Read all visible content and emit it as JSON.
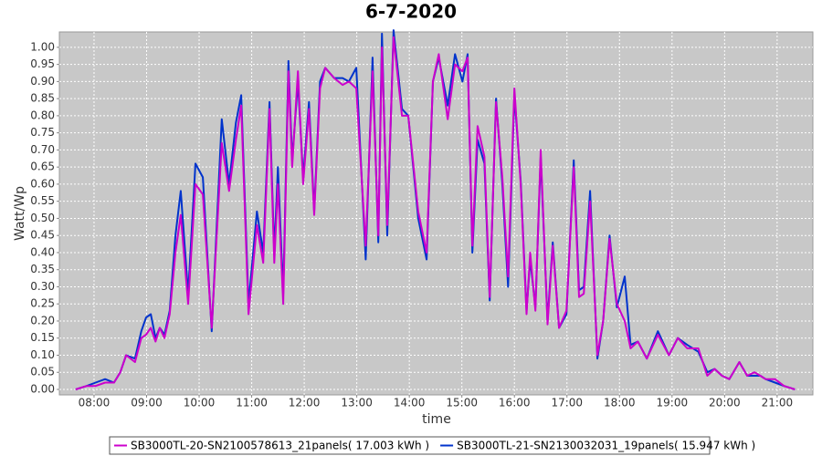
{
  "chart_data": {
    "type": "line",
    "title": "6-7-2020",
    "x_label": "time",
    "y_label": "Watt/Wp",
    "xlim": [
      7.34,
      21.68
    ],
    "ylim": [
      -0.016,
      1.045
    ],
    "grid": true,
    "legend": "bottom",
    "xticks": [
      {
        "value": 8,
        "label": "08:00"
      },
      {
        "value": 9,
        "label": "09:00"
      },
      {
        "value": 10,
        "label": "10:00"
      },
      {
        "value": 11,
        "label": "11:00"
      },
      {
        "value": 12,
        "label": "12:00"
      },
      {
        "value": 13,
        "label": "13:00"
      },
      {
        "value": 14,
        "label": "14:00"
      },
      {
        "value": 15,
        "label": "15:00"
      },
      {
        "value": 16,
        "label": "16:00"
      },
      {
        "value": 17,
        "label": "17:00"
      },
      {
        "value": 18,
        "label": "18:00"
      },
      {
        "value": 19,
        "label": "19:00"
      },
      {
        "value": 20,
        "label": "20:00"
      },
      {
        "value": 21,
        "label": "21:00"
      }
    ],
    "yticks": [
      {
        "value": 0,
        "label": "0.00"
      },
      0.05,
      {
        "value": 0.1,
        "label": "0.10"
      },
      0.15,
      {
        "value": 0.2,
        "label": "0.20"
      },
      0.25,
      {
        "value": 0.3,
        "label": "0.30"
      },
      0.35,
      {
        "value": 0.4,
        "label": "0.40"
      },
      0.45,
      {
        "value": 0.5,
        "label": "0.50"
      },
      0.55,
      {
        "value": 0.6,
        "label": "0.60"
      },
      0.65,
      {
        "value": 0.7,
        "label": "0.70"
      },
      0.75,
      {
        "value": 0.8,
        "label": "0.80"
      },
      0.85,
      {
        "value": 0.9,
        "label": "0.90"
      },
      0.95,
      {
        "value": 1,
        "label": "1.00"
      }
    ],
    "x": [
      7.65,
      7.86,
      8.03,
      8.21,
      8.38,
      8.5,
      8.61,
      8.78,
      8.9,
      8.99,
      9.08,
      9.17,
      9.25,
      9.34,
      9.44,
      9.55,
      9.65,
      9.79,
      9.93,
      10.07,
      10.24,
      10.43,
      10.57,
      10.7,
      10.8,
      10.94,
      11.1,
      11.22,
      11.34,
      11.43,
      11.5,
      11.6,
      11.7,
      11.77,
      11.88,
      11.98,
      12.09,
      12.19,
      12.3,
      12.4,
      12.57,
      12.73,
      12.85,
      12.99,
      13.17,
      13.3,
      13.41,
      13.48,
      13.58,
      13.7,
      13.86,
      13.98,
      14.17,
      14.33,
      14.45,
      14.56,
      14.73,
      14.87,
      15.01,
      15.11,
      15.2,
      15.3,
      15.43,
      15.53,
      15.65,
      15.77,
      15.88,
      16.0,
      16.12,
      16.23,
      16.3,
      16.4,
      16.5,
      16.63,
      16.73,
      16.85,
      16.99,
      17.13,
      17.23,
      17.32,
      17.44,
      17.58,
      17.69,
      17.81,
      17.95,
      18.1,
      18.21,
      18.35,
      18.52,
      18.73,
      18.94,
      19.11,
      19.29,
      19.5,
      19.67,
      19.81,
      19.95,
      20.09,
      20.28,
      20.43,
      20.57,
      20.68,
      20.78,
      20.96,
      21.13,
      21.34
    ],
    "series": [
      {
        "name": "SB3000TL-20-SN2100578613_21panels( 17.003 kWh )",
        "color": "#cc00cc",
        "values": [
          0.0,
          0.01,
          0.01,
          0.02,
          0.02,
          0.05,
          0.1,
          0.08,
          0.15,
          0.16,
          0.18,
          0.14,
          0.18,
          0.15,
          0.22,
          0.4,
          0.51,
          0.25,
          0.6,
          0.57,
          0.18,
          0.72,
          0.58,
          0.73,
          0.83,
          0.22,
          0.48,
          0.37,
          0.82,
          0.37,
          0.6,
          0.25,
          0.93,
          0.65,
          0.93,
          0.6,
          0.82,
          0.51,
          0.88,
          0.94,
          0.91,
          0.89,
          0.9,
          0.88,
          0.42,
          0.93,
          0.45,
          1.0,
          0.48,
          1.03,
          0.8,
          0.8,
          0.52,
          0.4,
          0.9,
          0.98,
          0.79,
          0.95,
          0.93,
          0.97,
          0.42,
          0.77,
          0.68,
          0.27,
          0.84,
          0.62,
          0.33,
          0.88,
          0.6,
          0.22,
          0.4,
          0.23,
          0.7,
          0.19,
          0.42,
          0.18,
          0.23,
          0.65,
          0.27,
          0.28,
          0.55,
          0.1,
          0.2,
          0.44,
          0.25,
          0.2,
          0.12,
          0.14,
          0.09,
          0.16,
          0.1,
          0.15,
          0.12,
          0.12,
          0.04,
          0.06,
          0.04,
          0.03,
          0.08,
          0.04,
          0.05,
          0.04,
          0.03,
          0.03,
          0.01,
          0.0
        ]
      },
      {
        "name": "SB3000TL-21-SN2130032031_19panels( 15.947 kWh )",
        "color": "#0033cc",
        "values": [
          0.0,
          0.01,
          0.02,
          0.03,
          0.02,
          0.05,
          0.1,
          0.09,
          0.17,
          0.21,
          0.22,
          0.15,
          0.18,
          0.16,
          0.23,
          0.45,
          0.58,
          0.28,
          0.66,
          0.62,
          0.17,
          0.79,
          0.6,
          0.78,
          0.86,
          0.25,
          0.52,
          0.4,
          0.84,
          0.4,
          0.65,
          0.28,
          0.96,
          0.67,
          0.9,
          0.62,
          0.84,
          0.52,
          0.9,
          0.94,
          0.91,
          0.91,
          0.9,
          0.94,
          0.38,
          0.97,
          0.43,
          1.04,
          0.45,
          1.05,
          0.82,
          0.8,
          0.5,
          0.38,
          0.9,
          0.97,
          0.83,
          0.98,
          0.9,
          0.98,
          0.4,
          0.73,
          0.66,
          0.26,
          0.85,
          0.6,
          0.3,
          0.86,
          0.61,
          0.23,
          0.38,
          0.24,
          0.68,
          0.2,
          0.43,
          0.18,
          0.22,
          0.67,
          0.29,
          0.3,
          0.58,
          0.09,
          0.2,
          0.45,
          0.24,
          0.33,
          0.13,
          0.14,
          0.09,
          0.17,
          0.1,
          0.15,
          0.13,
          0.11,
          0.05,
          0.06,
          0.04,
          0.03,
          0.08,
          0.04,
          0.04,
          0.04,
          0.03,
          0.02,
          0.01,
          0.0
        ]
      }
    ]
  }
}
